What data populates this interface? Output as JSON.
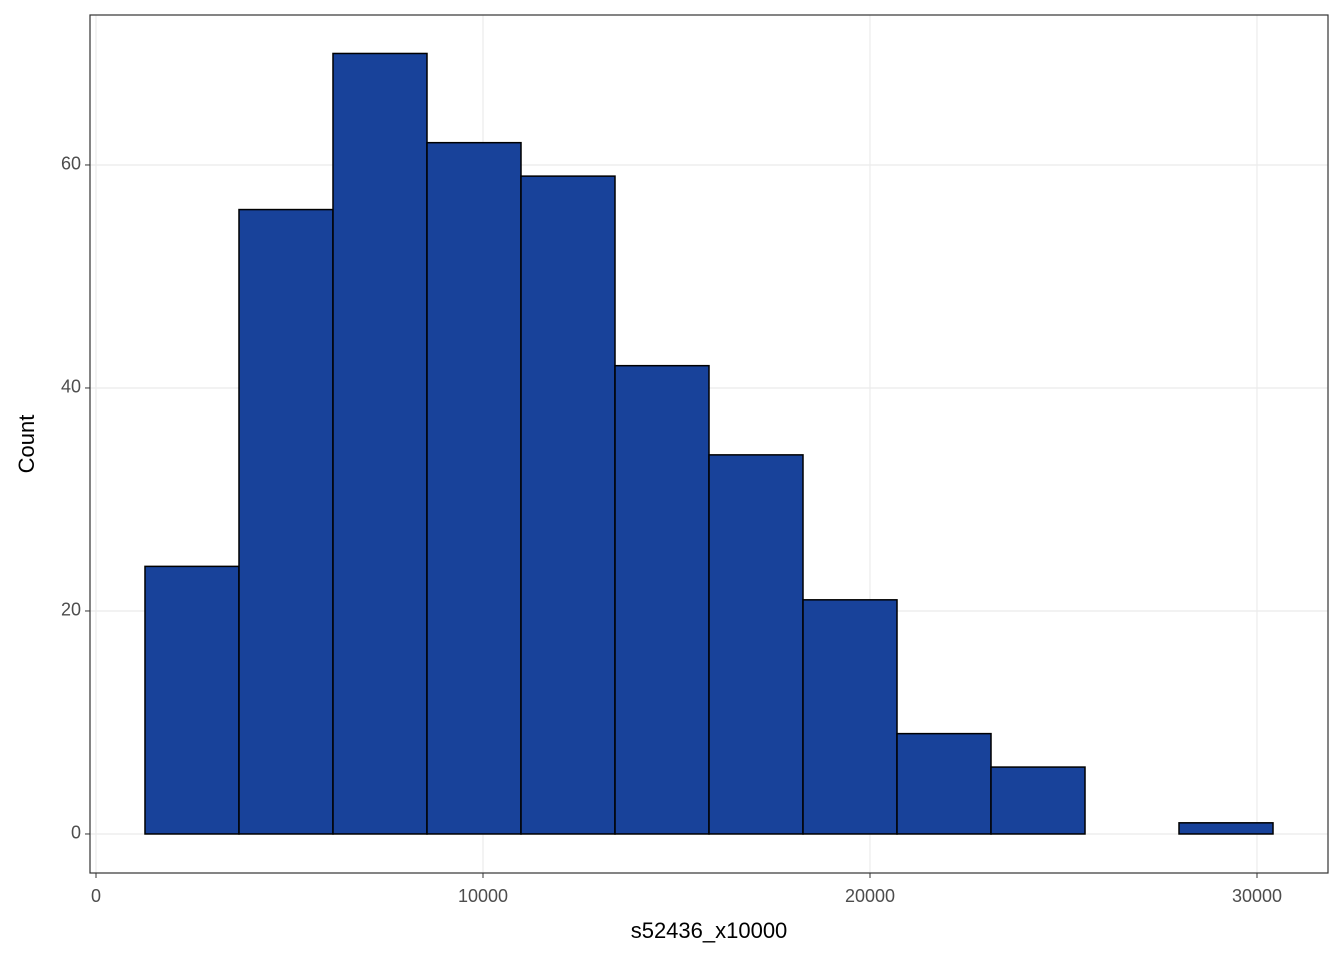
{
  "chart_data": {
    "type": "histogram",
    "x_label": "s52436_x10000",
    "y_label": "Count",
    "bins": [
      1266,
      3695,
      6124,
      8553,
      10982,
      13411,
      15840,
      18269,
      20698,
      23127,
      25556,
      27985,
      30414
    ],
    "values": [
      24,
      56,
      70,
      62,
      59,
      42,
      34,
      21,
      9,
      6,
      0,
      1
    ],
    "color": "#18429a",
    "xlim": [
      -155,
      31835
    ],
    "xticks": [
      0,
      10000,
      20000,
      30000
    ],
    "ylim": [
      -3.5,
      73.45
    ],
    "yticks": [
      0,
      20,
      40,
      60
    ],
    "grid": true
  }
}
